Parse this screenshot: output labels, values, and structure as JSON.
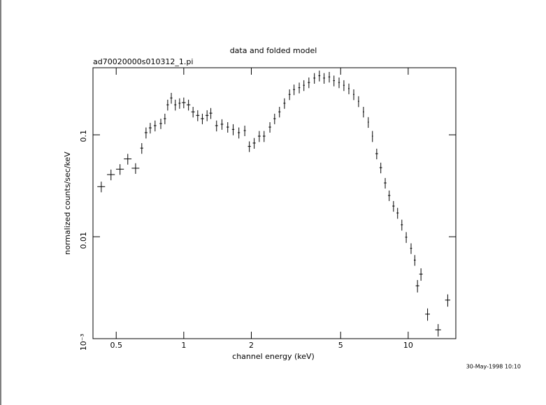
{
  "chart_data": {
    "type": "scatter",
    "title": "data and folded model",
    "subtitle": "ad70020000s010312_1.pi",
    "x_label": "channel energy (keV)",
    "y_label": "normalized counts/sec/keV",
    "annotation": "30-May-1998 10:10",
    "xscale": "log",
    "yscale": "log",
    "xlim": [
      0.394,
      16.3
    ],
    "ylim": [
      0.001,
      0.455
    ],
    "xticks": [
      0.5,
      1,
      2,
      5,
      10
    ],
    "yticks": [
      {
        "value": 0.001,
        "label": "10⁻³"
      },
      0.01,
      0.1
    ],
    "series": [
      {
        "color": "#000000",
        "x": [
          0.429,
          0.474,
          0.52,
          0.563,
          0.61,
          0.65,
          0.679,
          0.709,
          0.745,
          0.79,
          0.824,
          0.848,
          0.88,
          0.917,
          0.958,
          1.0,
          1.05,
          1.1,
          1.154,
          1.21,
          1.27,
          1.32,
          1.4,
          1.48,
          1.57,
          1.66,
          1.76,
          1.87,
          1.96,
          2.06,
          2.17,
          2.28,
          2.42,
          2.54,
          2.67,
          2.81,
          2.96,
          3.1,
          3.27,
          3.43,
          3.61,
          3.82,
          4.02,
          4.22,
          4.45,
          4.67,
          4.92,
          5.17,
          5.44,
          5.72,
          6.01,
          6.32,
          6.64,
          6.93,
          7.24,
          7.55,
          7.9,
          8.23,
          8.6,
          8.97,
          9.37,
          9.8,
          10.3,
          10.7,
          11.0,
          11.4,
          12.2,
          13.6,
          15.0
        ],
        "values": [
          0.031,
          0.0407,
          0.046,
          0.058,
          0.047,
          0.074,
          0.105,
          0.117,
          0.123,
          0.129,
          0.144,
          0.197,
          0.23,
          0.197,
          0.204,
          0.207,
          0.197,
          0.168,
          0.155,
          0.144,
          0.155,
          0.163,
          0.123,
          0.127,
          0.119,
          0.113,
          0.105,
          0.11,
          0.077,
          0.083,
          0.097,
          0.097,
          0.119,
          0.144,
          0.168,
          0.204,
          0.249,
          0.278,
          0.29,
          0.306,
          0.326,
          0.36,
          0.38,
          0.36,
          0.37,
          0.34,
          0.326,
          0.306,
          0.284,
          0.249,
          0.213,
          0.168,
          0.133,
          0.097,
          0.0653,
          0.0476,
          0.0337,
          0.0254,
          0.02,
          0.0171,
          0.0131,
          0.0099,
          0.0077,
          0.0059,
          0.0033,
          0.0043,
          0.00174,
          0.00122,
          0.00239
        ],
        "xerr": [
          0.017,
          0.019,
          0.021,
          0.022,
          0.024,
          0.01,
          0.01,
          0.01,
          0.01,
          0.01,
          0.01,
          0.01,
          0.01,
          0.01,
          0.01,
          0.02,
          0.02,
          0.02,
          0.02,
          0.02,
          0.02,
          0.02,
          0.02,
          0.02,
          0.02,
          0.02,
          0.02,
          0.02,
          0.03,
          0.03,
          0.03,
          0.03,
          0.03,
          0.03,
          0.03,
          0.03,
          0.03,
          0.03,
          0.03,
          0.03,
          0.04,
          0.04,
          0.04,
          0.04,
          0.04,
          0.04,
          0.04,
          0.04,
          0.04,
          0.04,
          0.04,
          0.04,
          0.04,
          0.04,
          0.1,
          0.1,
          0.1,
          0.1,
          0.1,
          0.1,
          0.1,
          0.1,
          0.1,
          0.1,
          0.2,
          0.2,
          0.3,
          0.4,
          0.4
        ],
        "yerr": [
          0.0037,
          0.0049,
          0.0055,
          0.007,
          0.0056,
          0.0089,
          0.013,
          0.014,
          0.015,
          0.015,
          0.017,
          0.024,
          0.028,
          0.024,
          0.024,
          0.025,
          0.024,
          0.02,
          0.019,
          0.017,
          0.019,
          0.02,
          0.015,
          0.015,
          0.014,
          0.014,
          0.013,
          0.013,
          0.0092,
          0.01,
          0.012,
          0.012,
          0.014,
          0.017,
          0.02,
          0.024,
          0.03,
          0.033,
          0.035,
          0.037,
          0.039,
          0.043,
          0.046,
          0.043,
          0.044,
          0.041,
          0.039,
          0.037,
          0.034,
          0.03,
          0.026,
          0.02,
          0.016,
          0.012,
          0.0078,
          0.0057,
          0.004,
          0.003,
          0.0024,
          0.0021,
          0.0016,
          0.0012,
          0.00092,
          0.00071,
          0.00046,
          0.0006,
          0.00024,
          0.00017,
          0.00033
        ]
      }
    ]
  }
}
